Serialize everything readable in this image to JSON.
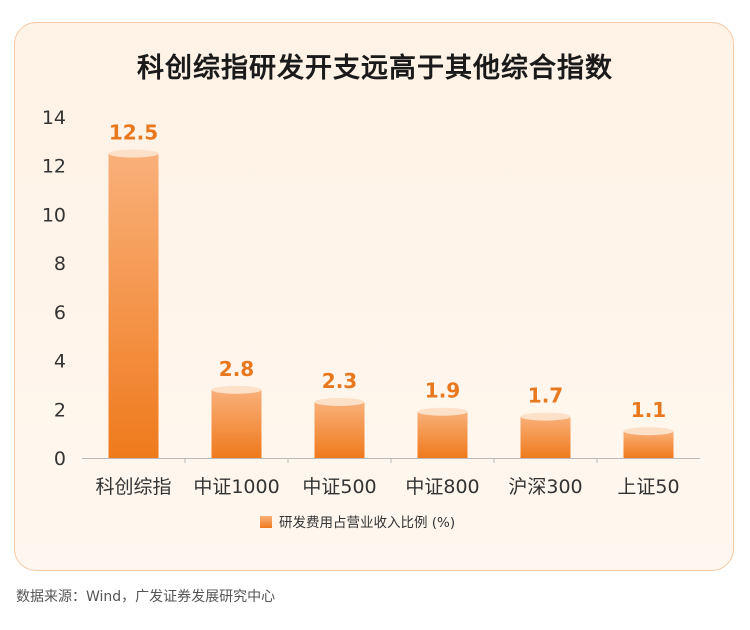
{
  "title": "科创综指研发开支远高于其他综合指数",
  "source": "数据来源：Wind，广发证券发展研究中心",
  "colors": {
    "bar_top": "#f7a063",
    "bar_bottom": "#ef7a1c",
    "label": "#e8781e",
    "axis_text": "#333333"
  },
  "chart_data": {
    "type": "bar",
    "categories": [
      "科创综指",
      "中证1000",
      "中证500",
      "中证800",
      "沪深300",
      "上证50"
    ],
    "series": [
      {
        "name": "研发费用占营业收入比例 (%)",
        "values": [
          12.5,
          2.8,
          2.3,
          1.9,
          1.7,
          1.1
        ]
      }
    ],
    "data_labels": [
      "12.5",
      "2.8",
      "2.3",
      "1.9",
      "1.7",
      "1.1"
    ],
    "ylim": [
      0,
      14
    ],
    "yticks": [
      0,
      2,
      4,
      6,
      8,
      10,
      12,
      14
    ],
    "legend_position": "bottom-center",
    "grid": false
  }
}
